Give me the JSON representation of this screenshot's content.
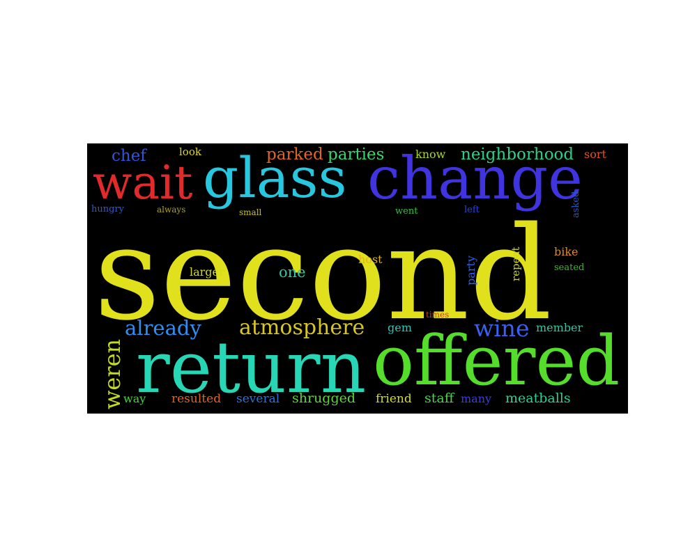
{
  "words": {
    "second": {
      "text": "second",
      "color": "#e1e01d"
    },
    "return": {
      "text": "return",
      "color": "#27d6b5"
    },
    "offered": {
      "text": "offered",
      "color": "#55dd2c"
    },
    "change": {
      "text": "change",
      "color": "#4034e0"
    },
    "glass": {
      "text": "glass",
      "color": "#27c7e0"
    },
    "wait": {
      "text": "wait",
      "color": "#e32a2a"
    },
    "atmosphere": {
      "text": "atmosphere",
      "color": "#d8c71e"
    },
    "weren": {
      "text": "weren",
      "color": "#c4db1d"
    },
    "already": {
      "text": "already",
      "color": "#2f8ff0"
    },
    "wine": {
      "text": "wine",
      "color": "#3b5ff0"
    },
    "neighborhood": {
      "text": "neighborhood",
      "color": "#2bd18b"
    },
    "parties": {
      "text": "parties",
      "color": "#3ad66d"
    },
    "parked": {
      "text": "parked",
      "color": "#e06622"
    },
    "chef": {
      "text": "chef",
      "color": "#3453d9"
    },
    "meatballs": {
      "text": "meatballs",
      "color": "#2dcf9b"
    },
    "shrugged": {
      "text": "shrugged",
      "color": "#5ad836"
    },
    "one": {
      "text": "one",
      "color": "#2ec9a3"
    },
    "host": {
      "text": "host",
      "color": "#e0b31f"
    },
    "larger": {
      "text": "larger",
      "color": "#cfdc1e"
    },
    "bike": {
      "text": "bike",
      "color": "#e08a1f"
    },
    "party": {
      "text": "party",
      "color": "#2f63e8"
    },
    "repeat": {
      "text": "repeat",
      "color": "#cbd21e"
    },
    "member": {
      "text": "member",
      "color": "#2ac9a6"
    },
    "staff": {
      "text": "staff",
      "color": "#4ad24f"
    },
    "friend": {
      "text": "friend",
      "color": "#d2de1d"
    },
    "several": {
      "text": "several",
      "color": "#2a73e0"
    },
    "resulted": {
      "text": "resulted",
      "color": "#e0641f"
    },
    "many": {
      "text": "many",
      "color": "#3a3ee0"
    },
    "way": {
      "text": "way",
      "color": "#48d23f"
    },
    "gem": {
      "text": "gem",
      "color": "#2bc7b9"
    },
    "know": {
      "text": "know",
      "color": "#a7d81e"
    },
    "look": {
      "text": "look",
      "color": "#dcd71f"
    },
    "sort": {
      "text": "sort",
      "color": "#e0531f"
    },
    "hungry": {
      "text": "hungry",
      "color": "#2d57d9"
    },
    "always": {
      "text": "always",
      "color": "#a9a41a"
    },
    "small": {
      "text": "small",
      "color": "#c8c21c"
    },
    "went": {
      "text": "went",
      "color": "#2fc23e"
    },
    "left": {
      "text": "left",
      "color": "#2747d2"
    },
    "asked": {
      "text": "asked",
      "color": "#2a55c9"
    },
    "seated": {
      "text": "seated",
      "color": "#3db82c"
    },
    "times": {
      "text": "times",
      "color": "#c7461c"
    }
  }
}
